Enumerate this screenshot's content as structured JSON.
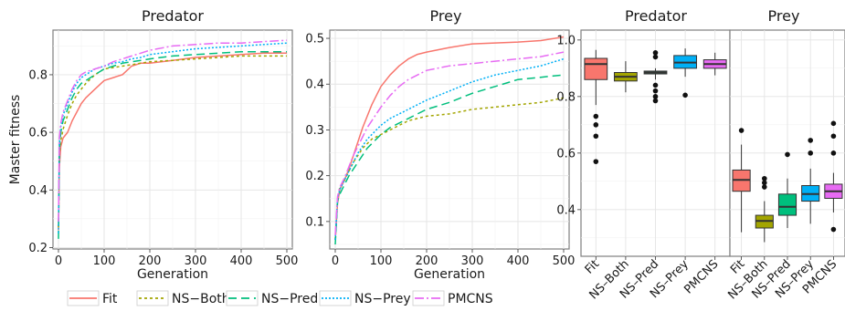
{
  "chart_data": [
    {
      "type": "line",
      "panel_id": "line-predator",
      "title": "Predator",
      "xlabel": "Generation",
      "ylabel": "Master fitness",
      "xlim": [
        -12,
        512
      ],
      "ylim": [
        0.195,
        0.955
      ],
      "xticks": [
        0,
        100,
        200,
        300,
        400,
        500
      ],
      "yticks": [
        0.2,
        0.4,
        0.6,
        0.8
      ],
      "ytick_labels": [
        "0.2",
        "0.4",
        "0.6",
        "0.8"
      ],
      "grid": true,
      "x": [
        0,
        2,
        5,
        10,
        20,
        30,
        40,
        50,
        60,
        80,
        100,
        120,
        140,
        160,
        180,
        200,
        250,
        300,
        350,
        400,
        450,
        500
      ],
      "series": [
        {
          "name": "Fit",
          "color": "#F8766D",
          "dash": "solid",
          "values": [
            0.26,
            0.48,
            0.55,
            0.58,
            0.6,
            0.64,
            0.67,
            0.7,
            0.72,
            0.75,
            0.78,
            0.79,
            0.8,
            0.83,
            0.84,
            0.84,
            0.85,
            0.86,
            0.865,
            0.87,
            0.875,
            0.875
          ]
        },
        {
          "name": "NS-Both",
          "color": "#A3A500",
          "dash": "3,3",
          "values": [
            0.27,
            0.52,
            0.57,
            0.61,
            0.66,
            0.7,
            0.73,
            0.75,
            0.77,
            0.8,
            0.82,
            0.825,
            0.83,
            0.835,
            0.84,
            0.845,
            0.85,
            0.855,
            0.86,
            0.865,
            0.865,
            0.865
          ]
        },
        {
          "name": "NS-Pred",
          "color": "#00BF7D",
          "dash": "9,5",
          "values": [
            0.23,
            0.54,
            0.6,
            0.64,
            0.68,
            0.72,
            0.75,
            0.77,
            0.78,
            0.8,
            0.82,
            0.83,
            0.84,
            0.845,
            0.85,
            0.855,
            0.865,
            0.87,
            0.875,
            0.88,
            0.88,
            0.88
          ]
        },
        {
          "name": "NS-Prey",
          "color": "#00B0F6",
          "dash": "2,2",
          "values": [
            0.25,
            0.56,
            0.62,
            0.66,
            0.7,
            0.74,
            0.77,
            0.79,
            0.8,
            0.82,
            0.83,
            0.84,
            0.845,
            0.855,
            0.86,
            0.87,
            0.88,
            0.89,
            0.895,
            0.9,
            0.905,
            0.91
          ]
        },
        {
          "name": "PMCNS",
          "color": "#E76BF3",
          "dash": "10,3,2,3",
          "values": [
            0.29,
            0.58,
            0.63,
            0.67,
            0.71,
            0.75,
            0.78,
            0.8,
            0.81,
            0.82,
            0.83,
            0.845,
            0.855,
            0.865,
            0.875,
            0.885,
            0.9,
            0.905,
            0.91,
            0.91,
            0.915,
            0.92
          ]
        }
      ]
    },
    {
      "type": "line",
      "panel_id": "line-prey",
      "title": "Prey",
      "xlabel": "Generation",
      "ylabel": "",
      "xlim": [
        -12,
        512
      ],
      "ylim": [
        0.04,
        0.518
      ],
      "xticks": [
        0,
        100,
        200,
        300,
        400,
        500
      ],
      "yticks": [
        0.1,
        0.2,
        0.3,
        0.4,
        0.5
      ],
      "ytick_labels": [
        "0.1",
        "0.2",
        "0.3",
        "0.4",
        "0.5"
      ],
      "grid": true,
      "x": [
        0,
        5,
        10,
        20,
        30,
        40,
        50,
        60,
        70,
        80,
        100,
        120,
        140,
        160,
        180,
        200,
        250,
        300,
        350,
        400,
        450,
        500
      ],
      "series": [
        {
          "name": "Fit",
          "color": "#F8766D",
          "dash": "solid",
          "values": [
            0.06,
            0.14,
            0.17,
            0.19,
            0.215,
            0.245,
            0.275,
            0.305,
            0.33,
            0.355,
            0.395,
            0.42,
            0.44,
            0.455,
            0.465,
            0.47,
            0.48,
            0.488,
            0.49,
            0.492,
            0.495,
            0.503
          ]
        },
        {
          "name": "NS-Both",
          "color": "#A3A500",
          "dash": "3,3",
          "values": [
            0.06,
            0.15,
            0.175,
            0.19,
            0.21,
            0.23,
            0.245,
            0.26,
            0.27,
            0.28,
            0.29,
            0.3,
            0.31,
            0.32,
            0.325,
            0.33,
            0.335,
            0.345,
            0.35,
            0.355,
            0.36,
            0.37
          ]
        },
        {
          "name": "NS-Pred",
          "color": "#00BF7D",
          "dash": "9,5",
          "values": [
            0.05,
            0.145,
            0.16,
            0.18,
            0.2,
            0.215,
            0.23,
            0.245,
            0.26,
            0.27,
            0.29,
            0.305,
            0.315,
            0.325,
            0.335,
            0.345,
            0.36,
            0.38,
            0.395,
            0.41,
            0.415,
            0.42
          ]
        },
        {
          "name": "NS-Prey",
          "color": "#00B0F6",
          "dash": "2,2",
          "values": [
            0.06,
            0.15,
            0.17,
            0.19,
            0.21,
            0.23,
            0.25,
            0.265,
            0.28,
            0.29,
            0.31,
            0.325,
            0.335,
            0.345,
            0.355,
            0.365,
            0.385,
            0.405,
            0.42,
            0.43,
            0.44,
            0.455
          ]
        },
        {
          "name": "PMCNS",
          "color": "#E76BF3",
          "dash": "10,3,2,3",
          "values": [
            0.07,
            0.155,
            0.175,
            0.195,
            0.22,
            0.245,
            0.265,
            0.285,
            0.305,
            0.32,
            0.35,
            0.375,
            0.395,
            0.41,
            0.42,
            0.43,
            0.44,
            0.445,
            0.45,
            0.455,
            0.46,
            0.47
          ]
        }
      ]
    },
    {
      "type": "box",
      "panel_id": "box-predator",
      "title": "Predator",
      "xlabel": "",
      "ylabel": "",
      "ylim": [
        0.235,
        1.035
      ],
      "yticks": [
        0.4,
        0.6,
        0.8,
        1.0
      ],
      "ytick_labels": [
        "0.4",
        "0.6",
        "0.8",
        "1.0"
      ],
      "grid": true,
      "categories": [
        "Fit",
        "NS–Both",
        "NS–Pred",
        "NS–Prey",
        "PMCNS"
      ],
      "boxes": [
        {
          "color": "#F8766D",
          "whisker_low": 0.77,
          "q1": 0.86,
          "median": 0.915,
          "q3": 0.935,
          "whisker_high": 0.965,
          "outliers": [
            0.73,
            0.7,
            0.66,
            0.57
          ]
        },
        {
          "color": "#A3A500",
          "whisker_low": 0.815,
          "q1": 0.855,
          "median": 0.87,
          "q3": 0.885,
          "whisker_high": 0.925,
          "outliers": []
        },
        {
          "color": "#00BF7D",
          "whisker_low": 0.86,
          "q1": 0.88,
          "median": 0.885,
          "q3": 0.89,
          "whisker_high": 0.9,
          "outliers": [
            0.955,
            0.94,
            0.84,
            0.82,
            0.8,
            0.785
          ]
        },
        {
          "color": "#00B0F6",
          "whisker_low": 0.87,
          "q1": 0.9,
          "median": 0.92,
          "q3": 0.945,
          "whisker_high": 0.97,
          "outliers": [
            0.805
          ]
        },
        {
          "color": "#E76BF3",
          "whisker_low": 0.875,
          "q1": 0.9,
          "median": 0.915,
          "q3": 0.93,
          "whisker_high": 0.955,
          "outliers": []
        }
      ]
    },
    {
      "type": "box",
      "panel_id": "box-prey",
      "title": "Prey",
      "xlabel": "",
      "ylabel": "",
      "ylim": [
        0.235,
        1.035
      ],
      "yticks": [
        0.4,
        0.6,
        0.8,
        1.0
      ],
      "grid": true,
      "categories": [
        "Fit",
        "NS–Both",
        "NS–Pred",
        "NS–Prey",
        "PMCNS"
      ],
      "boxes": [
        {
          "color": "#F8766D",
          "whisker_low": 0.32,
          "q1": 0.465,
          "median": 0.505,
          "q3": 0.54,
          "whisker_high": 0.63,
          "outliers": [
            0.68
          ]
        },
        {
          "color": "#A3A500",
          "whisker_low": 0.285,
          "q1": 0.335,
          "median": 0.36,
          "q3": 0.38,
          "whisker_high": 0.43,
          "outliers": [
            0.51,
            0.495,
            0.48
          ]
        },
        {
          "color": "#00BF7D",
          "whisker_low": 0.335,
          "q1": 0.38,
          "median": 0.41,
          "q3": 0.455,
          "whisker_high": 0.51,
          "outliers": [
            0.595
          ]
        },
        {
          "color": "#00B0F6",
          "whisker_low": 0.35,
          "q1": 0.43,
          "median": 0.455,
          "q3": 0.485,
          "whisker_high": 0.545,
          "outliers": [
            0.645,
            0.6
          ]
        },
        {
          "color": "#E76BF3",
          "whisker_low": 0.39,
          "q1": 0.44,
          "median": 0.465,
          "q3": 0.49,
          "whisker_high": 0.53,
          "outliers": [
            0.705,
            0.66,
            0.6,
            0.33
          ]
        }
      ]
    }
  ],
  "legend": {
    "position": "bottom",
    "items": [
      {
        "label": "Fit",
        "color": "#F8766D",
        "dash": "solid"
      },
      {
        "label": "NS−Both",
        "color": "#A3A500",
        "dash": "3,3"
      },
      {
        "label": "NS−Pred",
        "color": "#00BF7D",
        "dash": "9,5"
      },
      {
        "label": "NS−Prey",
        "color": "#00B0F6",
        "dash": "2,2"
      },
      {
        "label": "PMCNS",
        "color": "#E76BF3",
        "dash": "10,3,2,3"
      }
    ]
  }
}
